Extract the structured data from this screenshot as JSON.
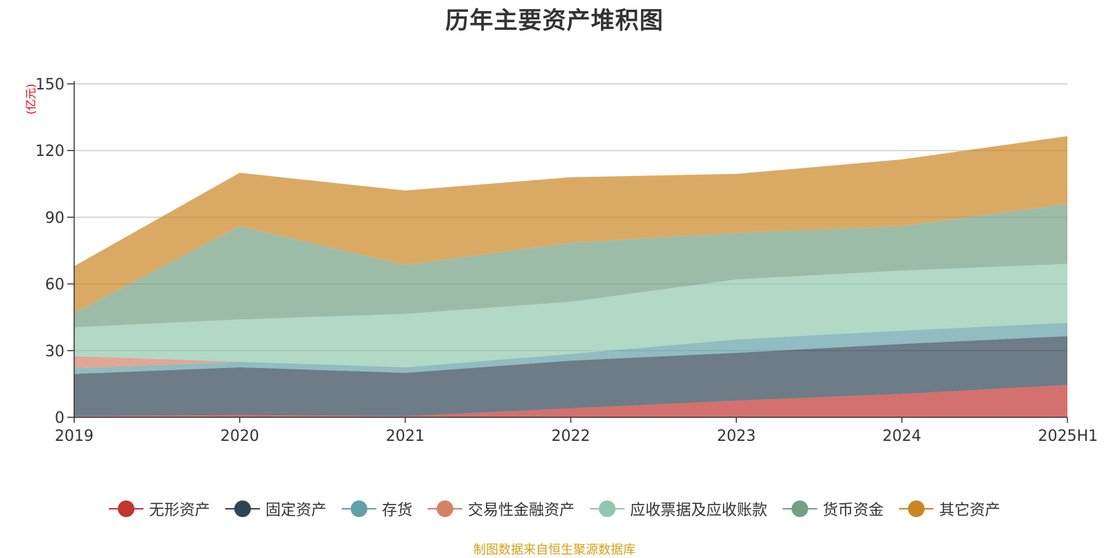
{
  "chart_data": {
    "type": "area",
    "stacked": true,
    "title": "历年主要资产堆积图",
    "unit_label": "(亿元)",
    "x": [
      "2019",
      "2020",
      "2021",
      "2022",
      "2023",
      "2024",
      "2025H1"
    ],
    "ylim": [
      0,
      150
    ],
    "yticks": [
      0,
      30,
      60,
      90,
      120,
      150
    ],
    "grid": true,
    "legend_position": "bottom",
    "series": [
      {
        "name": "无形资产",
        "color": "#c23531",
        "values": [
          0.5,
          1,
          0.5,
          4,
          7.5,
          10.5,
          14.5
        ]
      },
      {
        "name": "固定资产",
        "color": "#2f4554",
        "values": [
          19,
          21.5,
          19.5,
          21.5,
          21.5,
          22.5,
          22
        ]
      },
      {
        "name": "存货",
        "color": "#61a0a8",
        "values": [
          2.5,
          2.5,
          2.5,
          3,
          6,
          6,
          6
        ]
      },
      {
        "name": "交易性金融资产",
        "color": "#d48265",
        "values": [
          5.5,
          0,
          0,
          0,
          0,
          0,
          0
        ]
      },
      {
        "name": "应收票据及应收账款",
        "color": "#91c7ae",
        "values": [
          13,
          19,
          24,
          23.5,
          27,
          27,
          26.5
        ]
      },
      {
        "name": "货币资金",
        "color": "#749f83",
        "values": [
          6.5,
          42,
          22,
          26.5,
          21,
          20,
          27
        ]
      },
      {
        "name": "其它资产",
        "color": "#ca8622",
        "values": [
          21,
          24,
          33.5,
          29.5,
          26.5,
          30,
          30.5
        ]
      }
    ]
  },
  "source": "制图数据来自恒生聚源数据库"
}
